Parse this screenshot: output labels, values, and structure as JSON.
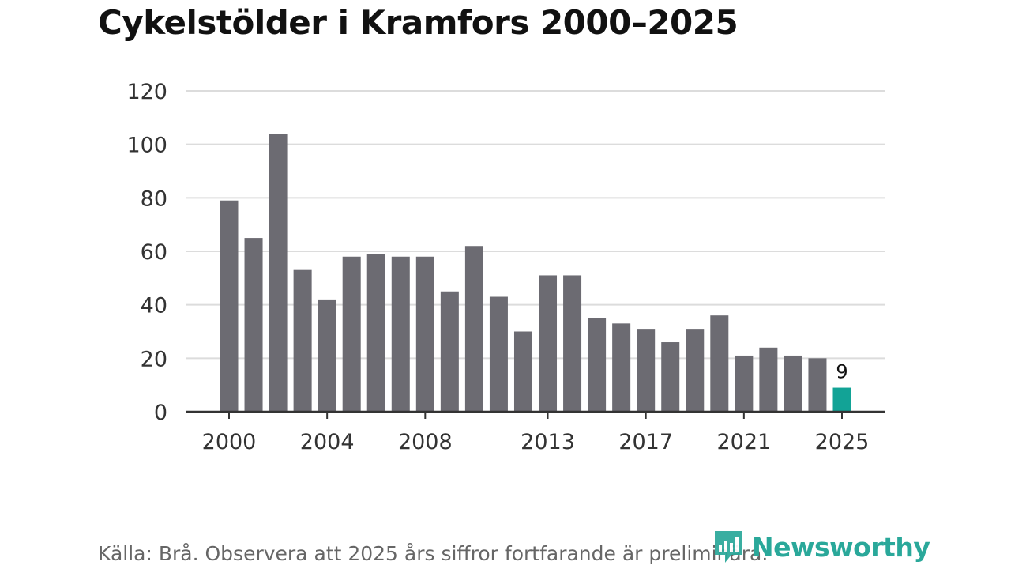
{
  "chart_data": {
    "type": "bar",
    "title": "Cykelstölder i Kramfors 2000–2025",
    "xlabel": "",
    "ylabel": "",
    "ylim": [
      0,
      120
    ],
    "yticks": [
      0,
      20,
      40,
      60,
      80,
      100,
      120
    ],
    "xtick_labels": [
      "2000",
      "2004",
      "2008",
      "2013",
      "2017",
      "2021",
      "2025"
    ],
    "categories": [
      "2000",
      "2001",
      "2002",
      "2003",
      "2004",
      "2005",
      "2006",
      "2007",
      "2008",
      "2009",
      "2010",
      "2011",
      "2012",
      "2013",
      "2014",
      "2015",
      "2016",
      "2017",
      "2018",
      "2019",
      "2020",
      "2021",
      "2022",
      "2023",
      "2024",
      "2025"
    ],
    "values": [
      79,
      65,
      104,
      53,
      42,
      58,
      59,
      58,
      58,
      45,
      62,
      43,
      30,
      51,
      51,
      35,
      33,
      31,
      26,
      31,
      36,
      21,
      24,
      21,
      20,
      9
    ],
    "highlight_index": 25,
    "annotation": "9",
    "grid": true
  },
  "colors": {
    "bar": "#6c6b72",
    "highlight": "#12a396",
    "grid": "#dcdcdc",
    "axis": "#333333",
    "brand": "#2aa89a"
  },
  "footer": {
    "source": "Källa: Brå. Observera att 2025 års siffror fortfarande är preliminära.",
    "logo_text": "Newsworthy"
  }
}
